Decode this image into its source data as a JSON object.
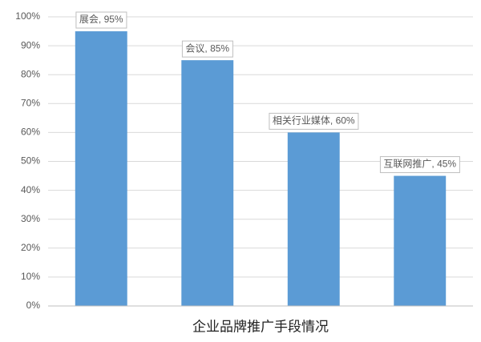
{
  "chart_data": {
    "type": "bar",
    "title": "企业品牌推广手段情况",
    "categories": [
      "展会",
      "会议",
      "相关行业媒体",
      "互联网推广"
    ],
    "values": [
      95,
      85,
      60,
      45
    ],
    "value_labels": [
      "展会, 95%",
      "会议, 85%",
      "相关行业媒体, 60%",
      "互联网推广, 45%"
    ],
    "color": "#5b9bd5",
    "ylim": [
      0,
      100
    ],
    "yticks": [
      {
        "value": 0,
        "label": "0%"
      },
      {
        "value": 10,
        "label": "10%"
      },
      {
        "value": 20,
        "label": "20%"
      },
      {
        "value": 30,
        "label": "30%"
      },
      {
        "value": 40,
        "label": "40%"
      },
      {
        "value": 50,
        "label": "50%"
      },
      {
        "value": 60,
        "label": "60%"
      },
      {
        "value": 70,
        "label": "70%"
      },
      {
        "value": 80,
        "label": "80%"
      },
      {
        "value": 90,
        "label": "90%"
      },
      {
        "value": 100,
        "label": "100%"
      }
    ],
    "grid": true
  }
}
